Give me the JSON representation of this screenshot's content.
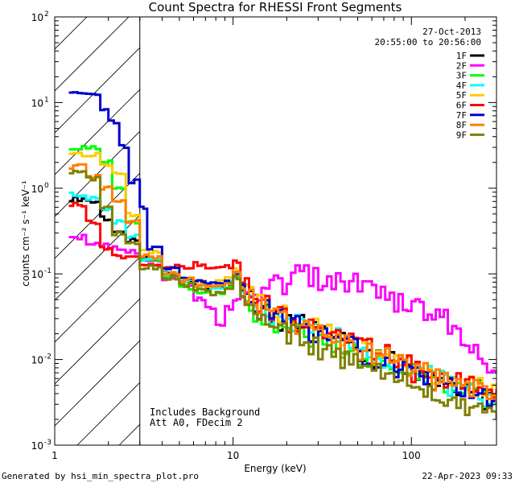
{
  "chart_data": {
    "type": "line",
    "title": "Count Spectra for RHESSI Front Segments",
    "date": "27-Oct-2013",
    "time_range": "20:55:00 to 20:56:00",
    "xlabel": "Energy (keV)",
    "ylabel": "counts cm⁻² s⁻¹ keV⁻¹",
    "x_scale": "log",
    "y_scale": "log",
    "xlim": [
      1,
      300
    ],
    "ylim": [
      0.001,
      100
    ],
    "x_ticks": [
      {
        "value": 1,
        "label": "1"
      },
      {
        "value": 10,
        "label": "10"
      },
      {
        "value": 100,
        "label": "100"
      }
    ],
    "y_ticks": [
      {
        "value": 100,
        "base": "10",
        "exp": "2"
      },
      {
        "value": 10,
        "base": "10",
        "exp": "1"
      },
      {
        "value": 1,
        "base": "10",
        "exp": "0"
      },
      {
        "value": 0.1,
        "base": "10",
        "exp": "-1"
      },
      {
        "value": 0.01,
        "base": "10",
        "exp": "-2"
      },
      {
        "value": 0.001,
        "base": "10",
        "exp": "-3"
      }
    ],
    "hatched_region": [
      1,
      3
    ],
    "annotations": [
      "Includes Background",
      "Att A0, FDecim 2"
    ],
    "footer_left": "Generated by hsi_min_spectra_plot.pro",
    "footer_right": "22-Apr-2023 09:33",
    "series": [
      {
        "name": "1F",
        "color": "#000000",
        "points": [
          [
            1.2,
            0.75
          ],
          [
            1.5,
            0.7
          ],
          [
            1.8,
            0.45
          ],
          [
            2.1,
            0.3
          ],
          [
            2.5,
            0.25
          ],
          [
            3,
            0.15
          ],
          [
            4,
            0.1
          ],
          [
            5,
            0.085
          ],
          [
            6,
            0.075
          ],
          [
            7,
            0.07
          ],
          [
            8,
            0.07
          ],
          [
            9,
            0.08
          ],
          [
            10,
            0.1
          ],
          [
            11,
            0.06
          ],
          [
            13,
            0.04
          ],
          [
            16,
            0.03
          ],
          [
            20,
            0.026
          ],
          [
            25,
            0.022
          ],
          [
            30,
            0.02
          ],
          [
            40,
            0.016
          ],
          [
            50,
            0.013
          ],
          [
            60,
            0.011
          ],
          [
            80,
            0.0085
          ],
          [
            100,
            0.007
          ],
          [
            130,
            0.0055
          ],
          [
            160,
            0.005
          ],
          [
            200,
            0.0045
          ],
          [
            250,
            0.0035
          ],
          [
            300,
            0.003
          ]
        ]
      },
      {
        "name": "2F",
        "color": "#ff00ff",
        "points": [
          [
            1.2,
            0.27
          ],
          [
            1.5,
            0.22
          ],
          [
            2,
            0.2
          ],
          [
            2.5,
            0.18
          ],
          [
            3,
            0.15
          ],
          [
            4,
            0.09
          ],
          [
            5,
            0.07
          ],
          [
            6,
            0.05
          ],
          [
            7,
            0.04
          ],
          [
            8,
            0.025
          ],
          [
            9,
            0.04
          ],
          [
            10,
            0.05
          ],
          [
            11,
            0.05
          ],
          [
            13,
            0.06
          ],
          [
            16,
            0.08
          ],
          [
            20,
            0.1
          ],
          [
            25,
            0.1
          ],
          [
            30,
            0.09
          ],
          [
            40,
            0.08
          ],
          [
            50,
            0.07
          ],
          [
            60,
            0.06
          ],
          [
            80,
            0.05
          ],
          [
            100,
            0.04
          ],
          [
            130,
            0.03
          ],
          [
            160,
            0.02
          ],
          [
            200,
            0.012
          ],
          [
            250,
            0.008
          ],
          [
            300,
            0.006
          ]
        ]
      },
      {
        "name": "3F",
        "color": "#00ff00",
        "points": [
          [
            1.2,
            3
          ],
          [
            1.5,
            3
          ],
          [
            1.8,
            2
          ],
          [
            2.1,
            1
          ],
          [
            2.5,
            0.4
          ],
          [
            3,
            0.15
          ],
          [
            4,
            0.09
          ],
          [
            5,
            0.07
          ],
          [
            6,
            0.06
          ],
          [
            7,
            0.06
          ],
          [
            8,
            0.06
          ],
          [
            9,
            0.07
          ],
          [
            10,
            0.09
          ],
          [
            11,
            0.05
          ],
          [
            13,
            0.035
          ],
          [
            16,
            0.025
          ],
          [
            20,
            0.022
          ],
          [
            25,
            0.018
          ],
          [
            30,
            0.016
          ],
          [
            40,
            0.013
          ],
          [
            50,
            0.011
          ],
          [
            60,
            0.009
          ],
          [
            80,
            0.008
          ],
          [
            100,
            0.007
          ],
          [
            130,
            0.0055
          ],
          [
            160,
            0.005
          ],
          [
            200,
            0.0045
          ],
          [
            250,
            0.0035
          ],
          [
            300,
            0.003
          ]
        ]
      },
      {
        "name": "4F",
        "color": "#00ffff",
        "points": [
          [
            1.2,
            0.85
          ],
          [
            1.5,
            0.75
          ],
          [
            1.8,
            0.55
          ],
          [
            2.1,
            0.4
          ],
          [
            2.5,
            0.28
          ],
          [
            3,
            0.15
          ],
          [
            4,
            0.1
          ],
          [
            5,
            0.085
          ],
          [
            6,
            0.075
          ],
          [
            7,
            0.07
          ],
          [
            8,
            0.07
          ],
          [
            9,
            0.08
          ],
          [
            10,
            0.1
          ],
          [
            11,
            0.06
          ],
          [
            13,
            0.04
          ],
          [
            16,
            0.03
          ],
          [
            20,
            0.026
          ],
          [
            25,
            0.022
          ],
          [
            30,
            0.02
          ],
          [
            40,
            0.016
          ],
          [
            50,
            0.013
          ],
          [
            60,
            0.011
          ],
          [
            80,
            0.0085
          ],
          [
            100,
            0.007
          ],
          [
            130,
            0.006
          ],
          [
            160,
            0.005
          ],
          [
            200,
            0.0045
          ],
          [
            250,
            0.0035
          ],
          [
            300,
            0.003
          ]
        ]
      },
      {
        "name": "5F",
        "color": "#ffcc00",
        "points": [
          [
            1.2,
            2.5
          ],
          [
            1.5,
            2.5
          ],
          [
            1.8,
            1.8
          ],
          [
            2.1,
            1.5
          ],
          [
            2.5,
            0.5
          ],
          [
            3,
            0.18
          ],
          [
            4,
            0.1
          ],
          [
            5,
            0.09
          ],
          [
            6,
            0.08
          ],
          [
            7,
            0.075
          ],
          [
            8,
            0.08
          ],
          [
            9,
            0.09
          ],
          [
            10,
            0.11
          ],
          [
            11,
            0.07
          ],
          [
            13,
            0.045
          ],
          [
            16,
            0.035
          ],
          [
            20,
            0.028
          ],
          [
            25,
            0.024
          ],
          [
            30,
            0.021
          ],
          [
            40,
            0.017
          ],
          [
            50,
            0.014
          ],
          [
            60,
            0.012
          ],
          [
            80,
            0.009
          ],
          [
            100,
            0.0075
          ],
          [
            130,
            0.006
          ],
          [
            160,
            0.0055
          ],
          [
            200,
            0.005
          ],
          [
            250,
            0.004
          ],
          [
            300,
            0.0035
          ]
        ]
      },
      {
        "name": "6F",
        "color": "#ff0000",
        "points": [
          [
            1.2,
            0.65
          ],
          [
            1.5,
            0.4
          ],
          [
            1.8,
            0.2
          ],
          [
            2.1,
            0.16
          ],
          [
            2.5,
            0.16
          ],
          [
            3,
            0.13
          ],
          [
            4,
            0.12
          ],
          [
            5,
            0.12
          ],
          [
            6,
            0.13
          ],
          [
            7,
            0.12
          ],
          [
            8,
            0.12
          ],
          [
            9,
            0.12
          ],
          [
            10,
            0.14
          ],
          [
            11,
            0.07
          ],
          [
            13,
            0.045
          ],
          [
            16,
            0.035
          ],
          [
            20,
            0.028
          ],
          [
            25,
            0.024
          ],
          [
            30,
            0.021
          ],
          [
            40,
            0.017
          ],
          [
            50,
            0.014
          ],
          [
            60,
            0.012
          ],
          [
            80,
            0.009
          ],
          [
            100,
            0.0075
          ],
          [
            130,
            0.006
          ],
          [
            160,
            0.0055
          ],
          [
            200,
            0.005
          ],
          [
            250,
            0.004
          ],
          [
            300,
            0.0035
          ]
        ]
      },
      {
        "name": "7F",
        "color": "#0000cc",
        "points": [
          [
            1.2,
            13
          ],
          [
            1.5,
            12
          ],
          [
            1.8,
            8.5
          ],
          [
            2,
            6
          ],
          [
            2.3,
            3
          ],
          [
            2.6,
            1.2
          ],
          [
            3,
            0.6
          ],
          [
            3.3,
            0.2
          ],
          [
            4,
            0.12
          ],
          [
            5,
            0.09
          ],
          [
            6,
            0.08
          ],
          [
            7,
            0.075
          ],
          [
            8,
            0.075
          ],
          [
            9,
            0.08
          ],
          [
            10,
            0.1
          ],
          [
            11,
            0.06
          ],
          [
            13,
            0.04
          ],
          [
            16,
            0.03
          ],
          [
            20,
            0.026
          ],
          [
            25,
            0.022
          ],
          [
            30,
            0.019
          ],
          [
            40,
            0.015
          ],
          [
            50,
            0.012
          ],
          [
            60,
            0.01
          ],
          [
            80,
            0.008
          ],
          [
            100,
            0.0065
          ],
          [
            130,
            0.0055
          ],
          [
            160,
            0.005
          ],
          [
            200,
            0.0045
          ],
          [
            250,
            0.0035
          ],
          [
            300,
            0.003
          ]
        ]
      },
      {
        "name": "8F",
        "color": "#ff8000",
        "points": [
          [
            1.2,
            1.8
          ],
          [
            1.5,
            1.4
          ],
          [
            1.8,
            1.0
          ],
          [
            2.1,
            0.7
          ],
          [
            2.5,
            0.4
          ],
          [
            3,
            0.16
          ],
          [
            4,
            0.1
          ],
          [
            5,
            0.085
          ],
          [
            6,
            0.075
          ],
          [
            7,
            0.07
          ],
          [
            8,
            0.075
          ],
          [
            9,
            0.08
          ],
          [
            10,
            0.1
          ],
          [
            11,
            0.06
          ],
          [
            13,
            0.042
          ],
          [
            16,
            0.032
          ],
          [
            20,
            0.027
          ],
          [
            25,
            0.023
          ],
          [
            30,
            0.02
          ],
          [
            40,
            0.016
          ],
          [
            50,
            0.013
          ],
          [
            60,
            0.011
          ],
          [
            80,
            0.0088
          ],
          [
            100,
            0.0072
          ],
          [
            130,
            0.006
          ],
          [
            160,
            0.0052
          ],
          [
            200,
            0.0046
          ],
          [
            250,
            0.0038
          ],
          [
            300,
            0.0032
          ]
        ]
      },
      {
        "name": "9F",
        "color": "#808000",
        "points": [
          [
            1.2,
            1.5
          ],
          [
            1.5,
            1.3
          ],
          [
            1.8,
            0.6
          ],
          [
            2.1,
            0.3
          ],
          [
            2.5,
            0.22
          ],
          [
            3,
            0.12
          ],
          [
            4,
            0.09
          ],
          [
            5,
            0.075
          ],
          [
            6,
            0.065
          ],
          [
            7,
            0.06
          ],
          [
            8,
            0.06
          ],
          [
            9,
            0.07
          ],
          [
            10,
            0.09
          ],
          [
            11,
            0.055
          ],
          [
            13,
            0.035
          ],
          [
            16,
            0.025
          ],
          [
            20,
            0.02
          ],
          [
            25,
            0.016
          ],
          [
            30,
            0.013
          ],
          [
            40,
            0.01
          ],
          [
            50,
            0.008
          ],
          [
            60,
            0.007
          ],
          [
            80,
            0.0055
          ],
          [
            100,
            0.0045
          ],
          [
            130,
            0.004
          ],
          [
            160,
            0.0035
          ],
          [
            200,
            0.003
          ],
          [
            250,
            0.0028
          ],
          [
            300,
            0.0025
          ]
        ]
      }
    ]
  }
}
